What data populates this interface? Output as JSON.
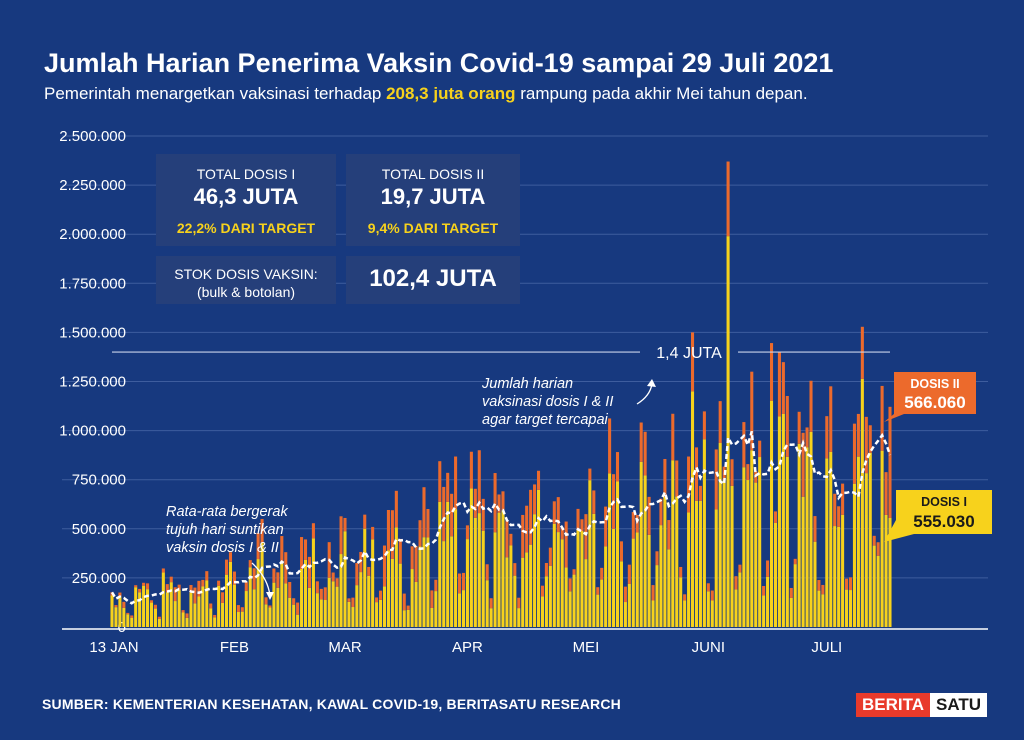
{
  "header": {
    "title": "Jumlah Harian Penerima Vaksin Covid-19 sampai 29 Juli 2021",
    "subtitle_pre": "Pemerintah menargetkan vaksinasi terhadap ",
    "subtitle_highlight": "208,3 juta orang",
    "subtitle_post": " rampung pada akhir Mei tahun depan."
  },
  "stats": {
    "dose1_label": "TOTAL DOSIS I",
    "dose1_value": "46,3 JUTA",
    "dose1_pct": "22,2% DARI TARGET",
    "dose2_label": "TOTAL DOSIS II",
    "dose2_value": "19,7 JUTA",
    "dose2_pct": "9,4% DARI TARGET",
    "stock_label": "STOK DOSIS VAKSIN:",
    "stock_sub": "(bulk & botolan)",
    "stock_value": "102,4 JUTA"
  },
  "footer": {
    "source": "SUMBER: KEMENTERIAN KESEHATAN, KAWAL COVID-19, BERITASATU RESEARCH",
    "logo_a": "BERITA",
    "logo_b": "SATU"
  },
  "colors": {
    "background": "#17397f",
    "dose1": "#f7d21c",
    "dose2": "#ec6a2c",
    "grid": "#3e5d9e",
    "reference_line": "#c9d3ea"
  },
  "chart_data": {
    "type": "bar",
    "stacked": true,
    "ylim": [
      0,
      2500000
    ],
    "yticks": [
      0,
      250000,
      500000,
      750000,
      1000000,
      1250000,
      1500000,
      1750000,
      2000000,
      2250000,
      2500000
    ],
    "ytick_labels": [
      "0",
      "250.000",
      "500.000",
      "750.000",
      "1.000.000",
      "1.250.000",
      "1.500.000",
      "1.750.000",
      "2.000.000",
      "2.250.000",
      "2.500.000"
    ],
    "x_range": [
      "2021-01-13",
      "2021-07-29"
    ],
    "xtick_labels": [
      {
        "date": "2021-01-13",
        "label": "13 JAN"
      },
      {
        "date": "2021-02-13",
        "label": "FEB"
      },
      {
        "date": "2021-03-13",
        "label": "MAR"
      },
      {
        "date": "2021-04-13",
        "label": "APR"
      },
      {
        "date": "2021-05-13",
        "label": "MEI"
      },
      {
        "date": "2021-06-13",
        "label": "JUNI"
      },
      {
        "date": "2021-07-13",
        "label": "JULI"
      }
    ],
    "series_colors": {
      "dose1": "#f7d21c",
      "dose2": "#ec6a2c"
    },
    "weekly_profile_dose1": [
      180000,
      260000,
      440000,
      560000,
      640000,
      860000,
      1050000
    ],
    "weekly_profile_dose2": [
      15000,
      70000,
      150000,
      180000,
      170000,
      190000,
      220000
    ],
    "moving_average_profile": [
      20000,
      80000,
      250000,
      310000,
      280000,
      290000,
      350000
    ],
    "reference_line": {
      "value": 1400000,
      "label": "1,4 JUTA"
    },
    "annotations": {
      "target_note": [
        "Jumlah harian",
        "vaksinasi dosis I & II",
        "agar target tercapai"
      ],
      "ma_note": [
        "Rata-rata bergerak",
        "tujuh hari suntikan",
        "vaksin dosis I & II"
      ]
    },
    "callouts": {
      "dose2_label": "DOSIS II",
      "dose2_value": "566.060",
      "dose1_label": "DOSIS I",
      "dose1_value": "555.030"
    }
  }
}
